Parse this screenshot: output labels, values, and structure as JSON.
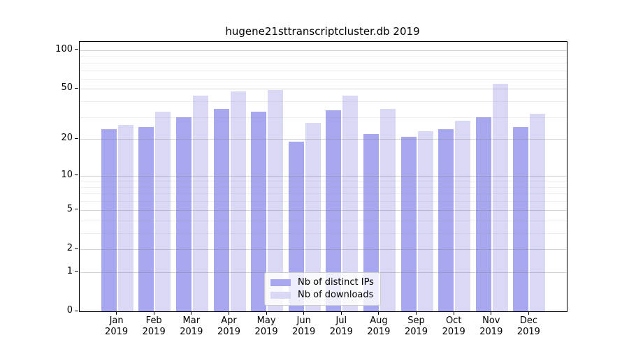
{
  "chart_data": {
    "type": "bar",
    "title": "hugene21sttranscriptcluster.db 2019",
    "year_label": "2019",
    "categories": [
      "Jan",
      "Feb",
      "Mar",
      "Apr",
      "May",
      "Jun",
      "Jul",
      "Aug",
      "Sep",
      "Oct",
      "Nov",
      "Dec"
    ],
    "series": [
      {
        "name": "Nb of distinct IPs",
        "color": "#a7a7f0",
        "values": [
          24,
          25,
          30,
          35,
          33,
          19,
          34,
          22,
          21,
          24,
          30,
          25
        ]
      },
      {
        "name": "Nb of downloads",
        "color": "#d9d9f6",
        "values": [
          26,
          33,
          44,
          48,
          49,
          27,
          44,
          35,
          23,
          28,
          55,
          32
        ]
      }
    ],
    "yscale": "log1p",
    "ylim": [
      0,
      116
    ],
    "yticks": [
      0,
      1,
      2,
      5,
      10,
      20,
      50,
      100
    ],
    "yticks_minor": [
      3,
      4,
      6,
      7,
      8,
      9,
      30,
      40,
      60,
      70,
      80,
      90
    ],
    "xlabel": "",
    "ylabel": "",
    "grid": true,
    "legend_position": "lower center"
  },
  "colors": {
    "background": "#ffffff",
    "axis": "#000000",
    "text": "#000000",
    "major_grid": "#787878",
    "minor_grid": "#969696",
    "legend_border": "#cccccc"
  }
}
